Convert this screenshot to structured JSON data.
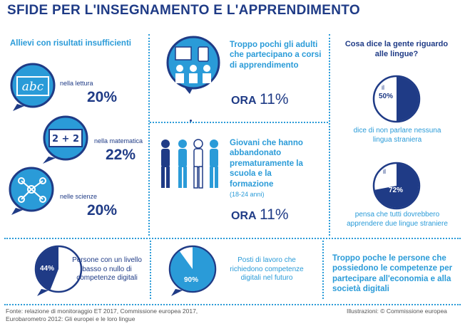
{
  "title": "SFIDE PER L'INSEGNAMENTO E L'APPRENDIMENTO",
  "left": {
    "heading": "Allievi con risultati insufficienti",
    "items": [
      {
        "label": "nella lettura",
        "value": "20%",
        "icon": "abc-icon",
        "icon_text": "abc"
      },
      {
        "label": "nella matematica",
        "value": "22%",
        "icon": "math-icon",
        "icon_text": "2 + 2"
      },
      {
        "label": "nelle scienze",
        "value": "20%",
        "icon": "molecule-icon"
      }
    ]
  },
  "middle": {
    "adults": {
      "heading": "Troppo pochi gli adulti che partecipano a corsi di apprendimento",
      "ora": "ORA",
      "value": "11%"
    },
    "youth": {
      "heading": "Giovani che hanno abbandonato prematuramente la scuola e la formazione",
      "age": "(18-24 anni)",
      "ora": "ORA",
      "value": "11%"
    }
  },
  "right": {
    "heading": "Cosa dice la gente riguardo alle lingue?",
    "pies": [
      {
        "prefix": "il",
        "label": "50%",
        "fraction": 0.5,
        "caption": "dice di non parlare nessuna lingua straniera"
      },
      {
        "prefix": "il",
        "label": "72%",
        "fraction": 0.72,
        "caption": "pensa che tutti dovrebbero apprendere due lingue straniere"
      }
    ]
  },
  "bottom": {
    "digital": {
      "label": "44%",
      "fraction": 0.44,
      "caption": "Persone con un livello basso o nullo di competenze digitali"
    },
    "jobs": {
      "label": "90%",
      "fraction": 0.9,
      "caption": "Posti di lavoro che richiedono competenze digitali nel futuro"
    },
    "few": "Troppo poche le persone che possiedono le competenze per partecipare all'economia e alla società digitali"
  },
  "footer": {
    "source_line1": "Fonte: relazione di monitoraggio ET 2017, Commissione europea 2017,",
    "source_line2": "Eurobarometro 2012: Gli europei e le loro lingue",
    "credits": "Illustrazioni: © Commissione europea"
  },
  "colors": {
    "dark_blue": "#1f3b86",
    "light_blue": "#2a9bd8"
  }
}
